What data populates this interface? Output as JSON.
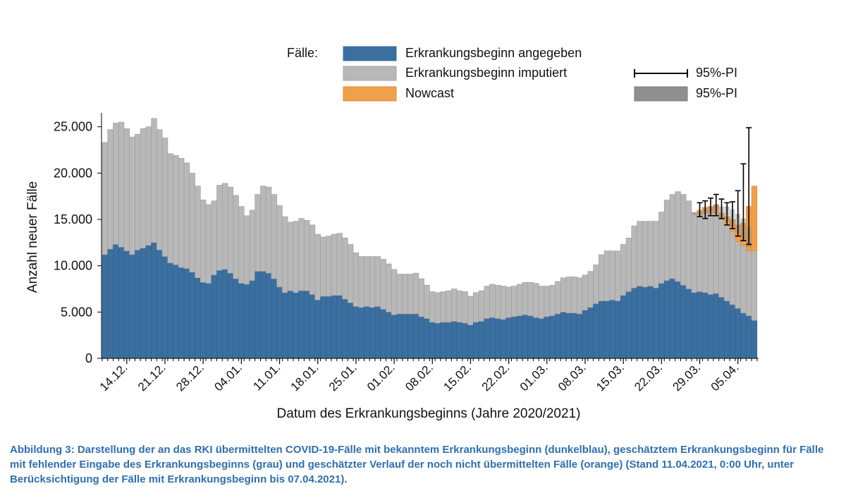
{
  "chart_data": {
    "type": "bar",
    "stacked": true,
    "title": "",
    "ylabel": "Anzahl neuer Fälle",
    "xlabel": "Datum des Erkrankungsbeginns (Jahre 2020/2021)",
    "ylim": [
      0,
      26500
    ],
    "yticks": [
      0,
      5000,
      10000,
      15000,
      20000,
      25000
    ],
    "ytick_labels": [
      "0",
      "5.000",
      "10.000",
      "15.000",
      "20.000",
      "25.000"
    ],
    "xtick_labels": [
      "14.12.",
      "21.12.",
      "28.12.",
      "04.01.",
      "11.01.",
      "18.01.",
      "25.01.",
      "01.02.",
      "08.02.",
      "15.02.",
      "22.02.",
      "01.03.",
      "08.03.",
      "15.03.",
      "22.03.",
      "29.03.",
      "05.04."
    ],
    "first_tick_index": 4,
    "tick_every": 7,
    "legend": {
      "heading": "Fälle:",
      "items": [
        {
          "label": "Erkrankungsbeginn angegeben",
          "color": "#3b6fa0"
        },
        {
          "label": "Erkrankungsbeginn imputiert",
          "color": "#b8b8b8"
        },
        {
          "label": "Nowcast",
          "color": "#f0a04b"
        }
      ],
      "pi_items": [
        {
          "label": "95%-PI",
          "kind": "errorbar"
        },
        {
          "label": "95%-PI",
          "kind": "band",
          "color": "#8f8f8f"
        }
      ],
      "position": "top"
    },
    "series": [
      {
        "name": "Erkrankungsbeginn angegeben",
        "color": "#3b6fa0",
        "values": [
          11200,
          11800,
          12300,
          12000,
          11600,
          11200,
          11700,
          11900,
          12200,
          12500,
          11700,
          11000,
          10300,
          10100,
          9800,
          9700,
          9300,
          8700,
          8200,
          8100,
          9000,
          9500,
          9600,
          9200,
          8600,
          8100,
          8000,
          8400,
          9400,
          9400,
          9200,
          8600,
          7700,
          7100,
          7300,
          7100,
          7300,
          7300,
          6900,
          6300,
          6700,
          6700,
          6800,
          6800,
          6400,
          6000,
          5600,
          5500,
          5600,
          5500,
          5600,
          5300,
          5000,
          4700,
          4800,
          4800,
          4800,
          4800,
          4500,
          4300,
          3900,
          3800,
          3900,
          3900,
          4000,
          3900,
          3800,
          3600,
          3900,
          4000,
          4300,
          4400,
          4300,
          4200,
          4400,
          4500,
          4600,
          4700,
          4600,
          4400,
          4300,
          4500,
          4600,
          4800,
          5000,
          4900,
          4900,
          4800,
          5200,
          5500,
          5900,
          6200,
          6200,
          6300,
          6200,
          6800,
          7200,
          7600,
          7800,
          7700,
          7800,
          7600,
          8100,
          8400,
          8600,
          8300,
          7900,
          7500,
          7100,
          7200,
          7100,
          6900,
          7000,
          6600,
          6200,
          5800,
          5400,
          4900,
          4600,
          4100
        ]
      },
      {
        "name": "Erkrankungsbeginn imputiert",
        "color": "#b8b8b8",
        "values": [
          12100,
          12900,
          13100,
          13500,
          13200,
          12700,
          12500,
          12900,
          12800,
          13400,
          13000,
          12800,
          11800,
          11800,
          11800,
          11400,
          10700,
          9900,
          8900,
          8500,
          8000,
          9200,
          9300,
          9300,
          9000,
          8300,
          7400,
          7600,
          8300,
          9200,
          9300,
          9100,
          8800,
          8200,
          7400,
          7700,
          7800,
          7600,
          7500,
          7100,
          6400,
          6500,
          6600,
          6700,
          6600,
          6300,
          5800,
          5500,
          5400,
          5500,
          5400,
          5400,
          5200,
          4900,
          4300,
          4300,
          4300,
          4400,
          4100,
          3600,
          3300,
          3300,
          3300,
          3400,
          3500,
          3400,
          3400,
          3100,
          3200,
          3300,
          3500,
          3600,
          3600,
          3600,
          3300,
          3300,
          3400,
          3500,
          3600,
          3700,
          3500,
          3300,
          3300,
          3500,
          3700,
          3900,
          3900,
          3900,
          3800,
          3900,
          4200,
          5000,
          5400,
          5300,
          5400,
          5500,
          5800,
          6700,
          7000,
          7100,
          7000,
          7200,
          7700,
          8700,
          9100,
          9700,
          9800,
          9500,
          8600,
          8400,
          8600,
          8800,
          8700,
          8400,
          8200,
          7900,
          7200,
          7300,
          7000,
          7500
        ]
      },
      {
        "name": "Nowcast",
        "color": "#f0a04b",
        "values": [
          0,
          0,
          0,
          0,
          0,
          0,
          0,
          0,
          0,
          0,
          0,
          0,
          0,
          0,
          0,
          0,
          0,
          0,
          0,
          0,
          0,
          0,
          0,
          0,
          0,
          0,
          0,
          0,
          0,
          0,
          0,
          0,
          0,
          0,
          0,
          0,
          0,
          0,
          0,
          0,
          0,
          0,
          0,
          0,
          0,
          0,
          0,
          0,
          0,
          0,
          0,
          0,
          0,
          0,
          0,
          0,
          0,
          0,
          0,
          0,
          0,
          0,
          0,
          0,
          0,
          0,
          0,
          0,
          0,
          0,
          0,
          0,
          0,
          0,
          0,
          0,
          0,
          0,
          0,
          0,
          0,
          0,
          0,
          0,
          0,
          0,
          0,
          0,
          0,
          0,
          0,
          0,
          0,
          0,
          0,
          0,
          0,
          0,
          0,
          0,
          0,
          0,
          0,
          0,
          0,
          0,
          0,
          0,
          0,
          400,
          600,
          700,
          900,
          700,
          900,
          1300,
          1800,
          2400,
          4800,
          7000
        ]
      }
    ],
    "pi_band": {
      "from_index": 108,
      "lower": [
        15500,
        15500,
        15600,
        15800,
        15600,
        15000,
        14700,
        14200,
        13500,
        12700,
        12000
      ],
      "upper": [
        15800,
        15900,
        16200,
        16400,
        16600,
        16400,
        16400,
        16100,
        15600,
        15100,
        14200
      ],
      "color": "#8f8f8f"
    },
    "error_bars": {
      "from_index": 109,
      "lower": [
        15300,
        15100,
        15400,
        15400,
        15100,
        14400,
        14000,
        13200,
        12700,
        12300
      ],
      "upper": [
        16800,
        17000,
        17300,
        17700,
        17200,
        16800,
        16900,
        18100,
        21000,
        24900
      ]
    }
  },
  "caption": "Abbildung 3: Darstellung der an das RKI übermittelten COVID-19-Fälle mit bekanntem Erkrankungsbeginn (dunkelblau), geschätztem Erkrankungsbeginn für Fälle mit fehlender Eingabe des Erkrankungsbeginns (grau) und geschätzter Verlauf der noch nicht übermittelten Fälle (orange) (Stand 11.04.2021, 0:00 Uhr, unter Berücksichtigung der Fälle mit Erkrankungsbeginn bis 07.04.2021)."
}
